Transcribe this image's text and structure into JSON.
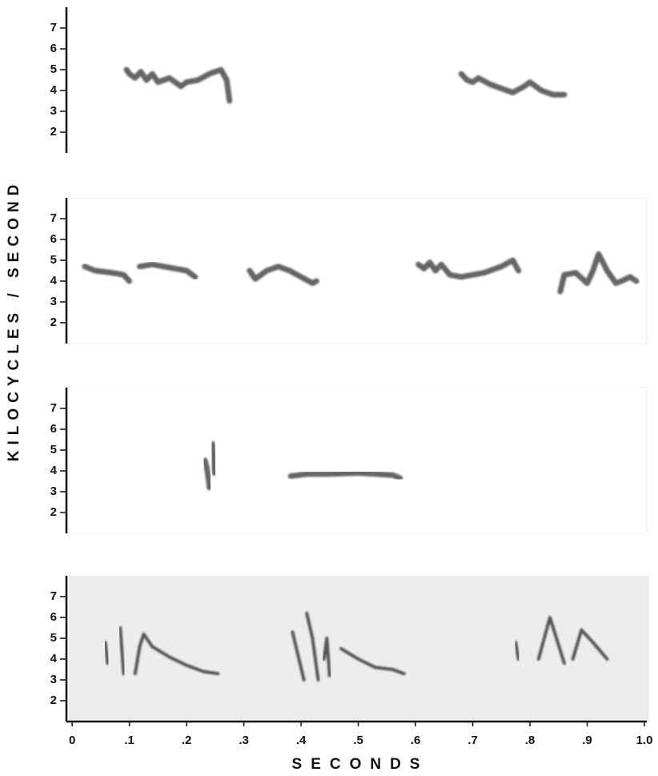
{
  "chart_data": [
    {
      "type": "line",
      "ylabel": "KILOCYCLES / SECOND",
      "color": "#555555",
      "xlim": [
        -0.01,
        1.0
      ],
      "ylim": [
        1,
        8
      ],
      "yticks": [
        2,
        3,
        4,
        5,
        6,
        7
      ],
      "series": [
        {
          "x": [
            0.095,
            0.1,
            0.11,
            0.12,
            0.13,
            0.14,
            0.15,
            0.17,
            0.19,
            0.2,
            0.22,
            0.24,
            0.26,
            0.27,
            0.275
          ],
          "values": [
            5.0,
            4.8,
            4.6,
            4.9,
            4.5,
            4.8,
            4.4,
            4.6,
            4.2,
            4.4,
            4.5,
            4.8,
            5.0,
            4.5,
            3.5
          ]
        },
        {
          "x": [
            0.68,
            0.69,
            0.7,
            0.71,
            0.73,
            0.75,
            0.77,
            0.79,
            0.8,
            0.82,
            0.84,
            0.86
          ],
          "values": [
            4.8,
            4.5,
            4.4,
            4.6,
            4.3,
            4.1,
            3.9,
            4.2,
            4.4,
            4.0,
            3.8,
            3.8
          ]
        }
      ]
    },
    {
      "type": "line",
      "color": "#555555",
      "xlim": [
        -0.01,
        1.0
      ],
      "ylim": [
        1,
        8
      ],
      "yticks": [
        2,
        3,
        4,
        5,
        6,
        7
      ],
      "series": [
        {
          "x": [
            0.022,
            0.04,
            0.07,
            0.09,
            0.1
          ],
          "values": [
            4.7,
            4.5,
            4.4,
            4.3,
            4.0
          ]
        },
        {
          "x": [
            0.118,
            0.14,
            0.16,
            0.18,
            0.2,
            0.215
          ],
          "values": [
            4.7,
            4.8,
            4.7,
            4.6,
            4.5,
            4.2
          ]
        },
        {
          "x": [
            0.31,
            0.32,
            0.34,
            0.36,
            0.38,
            0.4,
            0.42,
            0.427
          ],
          "values": [
            4.5,
            4.1,
            4.5,
            4.7,
            4.5,
            4.2,
            3.9,
            4.0
          ]
        },
        {
          "x": [
            0.605,
            0.615,
            0.625,
            0.635,
            0.645,
            0.66,
            0.68,
            0.72,
            0.75,
            0.77,
            0.78
          ],
          "values": [
            4.8,
            4.6,
            4.9,
            4.5,
            4.8,
            4.3,
            4.2,
            4.4,
            4.7,
            5.0,
            4.5
          ]
        },
        {
          "x": [
            0.853,
            0.86,
            0.88,
            0.9,
            0.91,
            0.92,
            0.935,
            0.95,
            0.96,
            0.975,
            0.986
          ],
          "values": [
            3.5,
            4.3,
            4.4,
            3.9,
            4.5,
            5.3,
            4.5,
            3.9,
            4.0,
            4.2,
            4.0
          ]
        }
      ]
    },
    {
      "type": "line",
      "color": "#555555",
      "xlim": [
        -0.01,
        1.0
      ],
      "ylim": [
        1,
        8
      ],
      "yticks": [
        2,
        3,
        4,
        5,
        6,
        7
      ],
      "series": [
        {
          "x": [
            0.232,
            0.235,
            0.238,
            0.24
          ],
          "values": [
            4.5,
            4.2,
            3.7,
            3.2
          ]
        },
        {
          "x": [
            0.245,
            0.247,
            0.249
          ],
          "values": [
            5.3,
            4.6,
            3.9
          ]
        },
        {
          "x": [
            0.382,
            0.41,
            0.45,
            0.5,
            0.53,
            0.56,
            0.573
          ],
          "values": [
            3.75,
            3.85,
            3.85,
            3.9,
            3.85,
            3.8,
            3.65
          ]
        }
      ]
    },
    {
      "type": "line",
      "xlabel": "SECONDS",
      "color": "#444444",
      "background": "#ededed",
      "xlim": [
        -0.01,
        1.0
      ],
      "ylim": [
        1,
        8
      ],
      "yticks": [
        2,
        3,
        4,
        5,
        6,
        7
      ],
      "xticks": [
        0,
        {
          "value": 0.1,
          "label": ".1"
        },
        {
          "value": 0.2,
          "label": ".2"
        },
        {
          "value": 0.3,
          "label": ".3"
        },
        {
          "value": 0.4,
          "label": ".4"
        },
        {
          "value": 0.5,
          "label": ".5"
        },
        {
          "value": 0.6,
          "label": ".6"
        },
        {
          "value": 0.7,
          "label": ".7"
        },
        {
          "value": 0.8,
          "label": ".8"
        },
        {
          "value": 0.9,
          "label": ".9"
        },
        {
          "value": 1.0,
          "label": "1.0"
        }
      ],
      "series": [
        {
          "x": [
            0.058,
            0.062
          ],
          "values": [
            4.8,
            3.8
          ]
        },
        {
          "x": [
            0.084,
            0.09
          ],
          "values": [
            5.5,
            3.3
          ]
        },
        {
          "x": [
            0.11,
            0.118,
            0.125,
            0.14,
            0.17,
            0.2,
            0.23,
            0.255
          ],
          "values": [
            3.3,
            4.6,
            5.2,
            4.6,
            4.1,
            3.7,
            3.4,
            3.3
          ]
        },
        {
          "x": [
            0.385,
            0.405
          ],
          "values": [
            5.3,
            3.0
          ]
        },
        {
          "x": [
            0.41,
            0.42,
            0.43
          ],
          "values": [
            6.2,
            5.0,
            3.0
          ]
        },
        {
          "x": [
            0.44,
            0.445,
            0.45
          ],
          "values": [
            4.0,
            5.0,
            3.2
          ]
        },
        {
          "x": [
            0.47,
            0.5,
            0.53,
            0.56,
            0.58
          ],
          "values": [
            4.5,
            4.0,
            3.6,
            3.5,
            3.3
          ]
        },
        {
          "x": [
            0.775,
            0.78
          ],
          "values": [
            4.8,
            4.0
          ]
        },
        {
          "x": [
            0.815,
            0.835,
            0.86
          ],
          "values": [
            4.0,
            6.0,
            3.8
          ]
        },
        {
          "x": [
            0.875,
            0.89,
            0.91,
            0.935
          ],
          "values": [
            4.0,
            5.4,
            4.8,
            4.0
          ]
        }
      ]
    }
  ]
}
